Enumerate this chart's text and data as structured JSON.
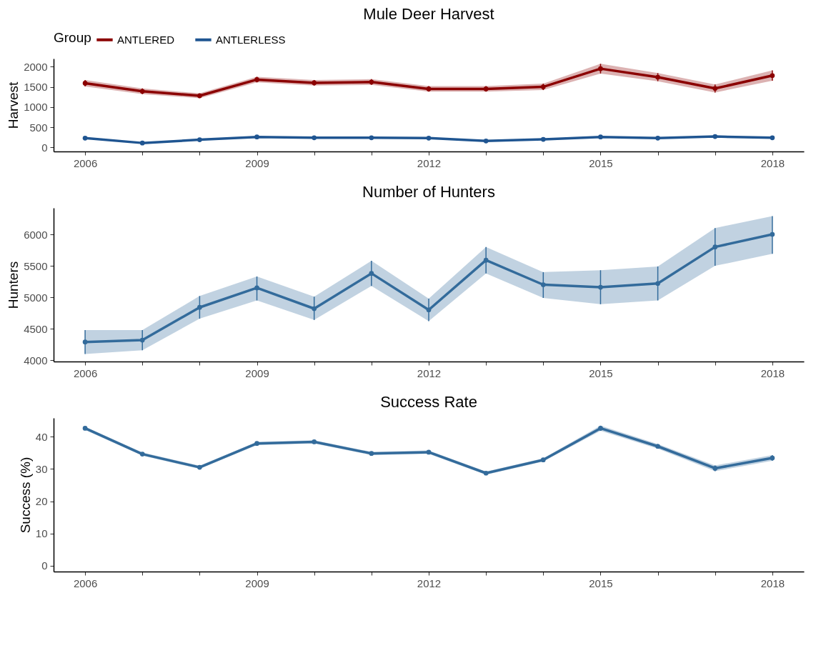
{
  "chart_data": [
    {
      "type": "line",
      "title": "Mule Deer Harvest",
      "ylabel": "Harvest",
      "legend_title": "Group",
      "legend": "top",
      "grid": false,
      "marker": "circle",
      "x": [
        2006,
        2007,
        2008,
        2009,
        2010,
        2011,
        2012,
        2013,
        2014,
        2015,
        2016,
        2017,
        2018
      ],
      "xlim": [
        2005.45,
        2018.55
      ],
      "xticks": [
        2006,
        {
          "value": 2007,
          "label": null
        },
        {
          "value": 2008,
          "label": null
        },
        2009,
        {
          "value": 2010,
          "label": null
        },
        {
          "value": 2011,
          "label": null
        },
        2012,
        {
          "value": 2013,
          "label": null
        },
        {
          "value": 2014,
          "label": null
        },
        2015,
        {
          "value": 2016,
          "label": null
        },
        {
          "value": 2017,
          "label": null
        },
        2018
      ],
      "ylim": [
        -100,
        2200
      ],
      "yticks": [
        0,
        500,
        1000,
        1500,
        2000
      ],
      "series": [
        {
          "name": "ANTLERED",
          "color": "#8b0000",
          "values": [
            1590,
            1390,
            1280,
            1680,
            1600,
            1620,
            1450,
            1450,
            1500,
            1950,
            1740,
            1460,
            1780
          ],
          "lower": [
            1510,
            1320,
            1220,
            1610,
            1530,
            1550,
            1380,
            1380,
            1420,
            1830,
            1640,
            1360,
            1650
          ],
          "upper": [
            1670,
            1460,
            1340,
            1750,
            1670,
            1690,
            1520,
            1520,
            1580,
            2070,
            1840,
            1560,
            1910
          ],
          "errors": [
            [
              1510,
              1670
            ],
            [
              1320,
              1460
            ],
            [
              1220,
              1340
            ],
            [
              1610,
              1750
            ],
            [
              1530,
              1670
            ],
            [
              1550,
              1690
            ],
            [
              1380,
              1520
            ],
            [
              1380,
              1520
            ],
            [
              1420,
              1580
            ],
            [
              1830,
              2070
            ],
            [
              1640,
              1840
            ],
            [
              1360,
              1560
            ],
            [
              1650,
              1910
            ]
          ]
        },
        {
          "name": "ANTLERLESS",
          "color": "#1f5591",
          "values": [
            230,
            110,
            190,
            260,
            240,
            240,
            230,
            160,
            200,
            260,
            230,
            270,
            240
          ]
        }
      ]
    },
    {
      "type": "line",
      "title": "Number of Hunters",
      "ylabel": "Hunters",
      "grid": false,
      "marker": "circle",
      "x": [
        2006,
        2007,
        2008,
        2009,
        2010,
        2011,
        2012,
        2013,
        2014,
        2015,
        2016,
        2017,
        2018
      ],
      "xlim": [
        2005.45,
        2018.55
      ],
      "xticks": [
        2006,
        {
          "value": 2007,
          "label": null
        },
        {
          "value": 2008,
          "label": null
        },
        2009,
        {
          "value": 2010,
          "label": null
        },
        {
          "value": 2011,
          "label": null
        },
        2012,
        {
          "value": 2013,
          "label": null
        },
        {
          "value": 2014,
          "label": null
        },
        2015,
        {
          "value": 2016,
          "label": null
        },
        {
          "value": 2017,
          "label": null
        },
        2018
      ],
      "ylim": [
        3980,
        6420
      ],
      "yticks": [
        4000,
        4500,
        5000,
        5500,
        6000
      ],
      "series": [
        {
          "color": "#336b9b",
          "values": [
            4290,
            4320,
            4840,
            5150,
            4820,
            5380,
            4800,
            5590,
            5200,
            5160,
            5220,
            5800,
            6000
          ],
          "lower": [
            4100,
            4160,
            4660,
            4950,
            4640,
            5180,
            4620,
            5380,
            4990,
            4890,
            4950,
            5500,
            5690
          ],
          "upper": [
            4480,
            4480,
            5020,
            5330,
            5010,
            5580,
            4980,
            5800,
            5400,
            5430,
            5490,
            6100,
            6290
          ],
          "errors": [
            [
              4100,
              4480
            ],
            [
              4160,
              4480
            ],
            [
              4660,
              5020
            ],
            [
              4950,
              5330
            ],
            [
              4640,
              5010
            ],
            [
              5180,
              5580
            ],
            [
              4620,
              4980
            ],
            [
              5380,
              5800
            ],
            [
              4990,
              5400
            ],
            [
              4890,
              5430
            ],
            [
              4950,
              5490
            ],
            [
              5500,
              6100
            ],
            [
              5690,
              6290
            ]
          ]
        }
      ]
    },
    {
      "type": "line",
      "title": "Success Rate",
      "ylabel": "Success (%)",
      "grid": false,
      "marker": "circle",
      "x": [
        2006,
        2007,
        2008,
        2009,
        2010,
        2011,
        2012,
        2013,
        2014,
        2015,
        2016,
        2017,
        2018
      ],
      "xlim": [
        2005.45,
        2018.55
      ],
      "xticks": [
        2006,
        {
          "value": 2007,
          "label": null
        },
        {
          "value": 2008,
          "label": null
        },
        2009,
        {
          "value": 2010,
          "label": null
        },
        {
          "value": 2011,
          "label": null
        },
        2012,
        {
          "value": 2013,
          "label": null
        },
        {
          "value": 2014,
          "label": null
        },
        2015,
        {
          "value": 2016,
          "label": null
        },
        {
          "value": 2017,
          "label": null
        },
        2018
      ],
      "ylim": [
        -1.8,
        45.8
      ],
      "yticks": [
        0,
        10,
        20,
        30,
        40
      ],
      "series": [
        {
          "color": "#336b9b",
          "values": [
            42.6,
            34.6,
            30.5,
            37.9,
            38.4,
            34.8,
            35.2,
            28.7,
            32.8,
            42.6,
            37.0,
            30.2,
            33.4
          ],
          "lower": [
            42.1,
            34.1,
            30.0,
            37.4,
            37.9,
            34.3,
            34.7,
            28.2,
            32.3,
            41.8,
            36.3,
            29.3,
            32.5
          ],
          "upper": [
            43.1,
            35.1,
            31.0,
            38.4,
            38.9,
            35.3,
            35.7,
            29.2,
            33.3,
            43.4,
            37.7,
            31.1,
            34.3
          ],
          "errors": [
            [
              42.1,
              43.1
            ],
            [
              34.1,
              35.1
            ],
            [
              30.0,
              31.0
            ],
            [
              37.4,
              38.4
            ],
            [
              37.9,
              38.9
            ],
            [
              34.3,
              35.3
            ],
            [
              34.7,
              35.7
            ],
            [
              28.2,
              29.2
            ],
            [
              32.3,
              33.3
            ],
            [
              41.8,
              43.4
            ],
            [
              36.3,
              37.7
            ],
            [
              29.3,
              31.1
            ],
            [
              32.5,
              34.3
            ]
          ]
        }
      ]
    }
  ]
}
